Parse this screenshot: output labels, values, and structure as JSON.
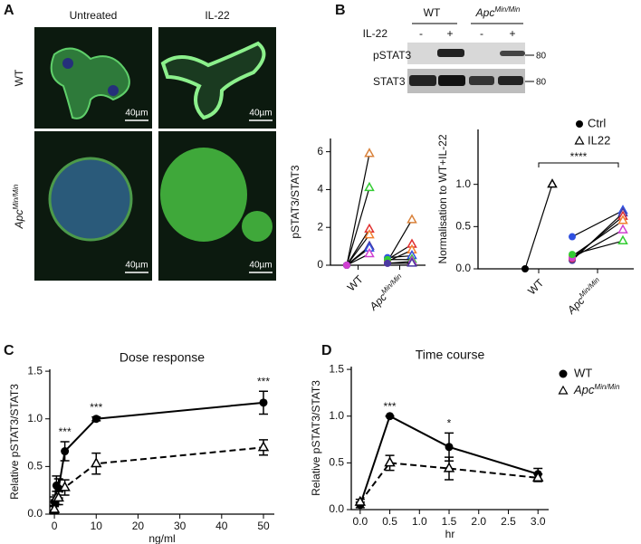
{
  "panels": [
    "A",
    "B",
    "C",
    "D"
  ],
  "microscopy": {
    "columns": [
      "Untreated",
      "IL-22"
    ],
    "rows": [
      "WT",
      {
        "text": "Apc",
        "sup": "Min/Min"
      }
    ],
    "scale_bars": [
      "40µm",
      "40µm",
      "40µm",
      "40µm"
    ]
  },
  "blot": {
    "treatment": "IL-22",
    "groups": [
      "WT",
      {
        "text": "Apc",
        "sup": "Min/Min"
      }
    ],
    "lanes": [
      "-",
      "+",
      "-",
      "+"
    ],
    "rows": [
      "pSTAT3",
      "STAT3"
    ],
    "markers": [
      "80",
      "80"
    ]
  },
  "chart_data": [
    {
      "type": "paired",
      "ylabel": "pSTAT3/STAT3",
      "ylim": [
        0,
        6.7
      ],
      "yticks": [
        0,
        2,
        4,
        6
      ],
      "categories": [
        "WT",
        {
          "text": "Apc",
          "sup": "Min/Min"
        }
      ],
      "legend": [
        {
          "name": "Ctrl",
          "marker": "circle"
        },
        {
          "name": "IL22",
          "marker": "triangle"
        }
      ],
      "groups": [
        {
          "samples": [
            {
              "color": "#d9823b",
              "values": [
                0,
                5.9
              ]
            },
            {
              "color": "#33cc33",
              "values": [
                0,
                4.1
              ]
            },
            {
              "color": "#e03030",
              "values": [
                0,
                1.9
              ]
            },
            {
              "color": "#f08030",
              "values": [
                0,
                1.6
              ]
            },
            {
              "color": "#4a3aa0",
              "values": [
                0,
                1.0
              ]
            },
            {
              "color": "#3050e0",
              "values": [
                0,
                0.9
              ]
            },
            {
              "color": "#d040d0",
              "values": [
                0,
                0.6
              ]
            }
          ]
        },
        {
          "samples": [
            {
              "color": "#d9823b",
              "values": [
                0.2,
                2.4
              ]
            },
            {
              "color": "#e03030",
              "values": [
                0.3,
                1.1
              ]
            },
            {
              "color": "#f08030",
              "values": [
                0.2,
                0.8
              ]
            },
            {
              "color": "#3050e0",
              "values": [
                0.4,
                0.5
              ]
            },
            {
              "color": "#33cc33",
              "values": [
                0.3,
                0.3
              ]
            },
            {
              "color": "#d040d0",
              "values": [
                0.1,
                0.2
              ]
            },
            {
              "color": "#4a3aa0",
              "values": [
                0.1,
                0.1
              ]
            }
          ]
        }
      ]
    },
    {
      "type": "paired",
      "ylabel": "Normalisation to WT+IL-22",
      "ylim": [
        0,
        1.65
      ],
      "yticks": [
        {
          "value": 0,
          "label": "0.0"
        },
        0.5,
        {
          "value": 1,
          "label": "1.0"
        }
      ],
      "categories": [
        "WT",
        {
          "text": "Apc",
          "sup": "Min/Min"
        }
      ],
      "annotation": "****",
      "groups": [
        {
          "samples": [
            {
              "color": "#000000",
              "values": [
                0,
                1.0
              ]
            }
          ]
        },
        {
          "samples": [
            {
              "color": "#3050e0",
              "values": [
                0.38,
                0.69
              ]
            },
            {
              "color": "#4a3aa0",
              "values": [
                0.1,
                0.66
              ]
            },
            {
              "color": "#e03030",
              "values": [
                0.12,
                0.62
              ]
            },
            {
              "color": "#f08030",
              "values": [
                0.15,
                0.57
              ]
            },
            {
              "color": "#d040d0",
              "values": [
                0.13,
                0.46
              ]
            },
            {
              "color": "#33cc33",
              "values": [
                0.17,
                0.33
              ]
            }
          ]
        }
      ]
    },
    {
      "type": "line",
      "title": "Dose response",
      "xlabel": "ng/ml",
      "ylabel": "Relative pSTAT3/STAT3",
      "x": [
        0,
        0.5,
        1,
        2.5,
        10,
        50
      ],
      "xlim": [
        -1.1,
        52.6
      ],
      "xticks": [
        0,
        10,
        20,
        30,
        40,
        50
      ],
      "ylim": [
        0,
        1.52
      ],
      "yticks": [
        {
          "value": 0,
          "label": "0.0"
        },
        0.5,
        {
          "value": 1,
          "label": "1.0"
        },
        1.5
      ],
      "series": [
        {
          "name": "WT",
          "marker": "circle",
          "dash": false,
          "color": "#000000",
          "values": [
            0.13,
            0.3,
            0.27,
            0.66,
            1.0,
            1.17
          ],
          "errors": [
            0.05,
            0.1,
            0.1,
            0.1,
            0.02,
            0.12
          ]
        },
        {
          "name": {
            "text": "Apc",
            "sup": "Min/Min"
          },
          "marker": "triangle",
          "dash": true,
          "color": "#000000",
          "values": [
            0.05,
            0.17,
            0.17,
            0.28,
            0.53,
            0.7
          ],
          "errors": [
            0.04,
            0.07,
            0.07,
            0.08,
            0.11,
            0.08
          ]
        }
      ],
      "annotations": [
        {
          "text": "***",
          "x": 2.5
        },
        {
          "text": "***",
          "x": 10
        },
        {
          "text": "***",
          "x": 50
        }
      ]
    },
    {
      "type": "line",
      "title": "Time course",
      "xlabel": "hr",
      "ylabel": "Relative pSTAT3/STAT3",
      "x": [
        0,
        0.5,
        1.5,
        3
      ],
      "xlim": [
        -0.15,
        3.18
      ],
      "xticks": [
        {
          "value": 0,
          "label": "0.0"
        },
        0.5,
        {
          "value": 1,
          "label": "1.0"
        },
        1.5,
        {
          "value": 2,
          "label": "2.0"
        },
        2.5,
        {
          "value": 3,
          "label": "3.0"
        }
      ],
      "ylim": [
        0,
        1.53
      ],
      "yticks": [
        {
          "value": 0,
          "label": "0.0"
        },
        0.5,
        {
          "value": 1,
          "label": "1.0"
        },
        1.5
      ],
      "legend": "right",
      "series": [
        {
          "name": "WT",
          "marker": "circle",
          "dash": false,
          "color": "#000000",
          "values": [
            0.05,
            1.0,
            0.67,
            0.38
          ],
          "errors": [
            0.03,
            0,
            0.15,
            0.06
          ]
        },
        {
          "name": {
            "text": "Apc",
            "sup": "Min/Min"
          },
          "marker": "triangle",
          "dash": true,
          "color": "#000000",
          "values": [
            0.08,
            0.5,
            0.44,
            0.34
          ],
          "errors": [
            0.03,
            0.08,
            0.12,
            0.04
          ]
        }
      ],
      "annotations": [
        {
          "text": "***",
          "x": 0.5
        },
        {
          "text": "*",
          "x": 1.5
        }
      ]
    }
  ]
}
